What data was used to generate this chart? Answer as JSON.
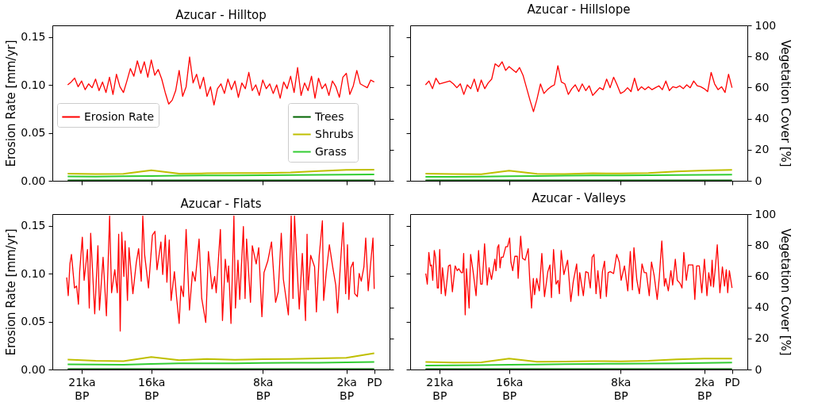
{
  "chart_data": [
    {
      "type": "line",
      "title": "Azucar - Hilltop",
      "ylabel": "Erosion Rate [mm/yr]",
      "xlim": [
        -23.1,
        1.1
      ],
      "ylim": [
        0,
        0.162
      ],
      "yticks": [
        {
          "value": 0,
          "label": "0.00"
        },
        {
          "value": 0.05,
          "label": "0.05"
        },
        {
          "value": 0.1,
          "label": "0.10"
        },
        {
          "value": 0.15,
          "label": "0.15"
        }
      ],
      "y2lim": [
        0,
        100
      ],
      "tick_labels": "y",
      "legend": [
        "center left",
        "center right"
      ],
      "series": [
        {
          "name": "Erosion Rate",
          "color": "#ff0000",
          "x": [
            -22,
            -21.75,
            -21.5,
            -21.25,
            -21,
            -20.75,
            -20.5,
            -20.25,
            -20,
            -19.75,
            -19.5,
            -19.25,
            -19,
            -18.75,
            -18.5,
            -18.25,
            -18,
            -17.75,
            -17.5,
            -17.25,
            -17,
            -16.75,
            -16.5,
            -16.25,
            -16,
            -15.75,
            -15.5,
            -15.25,
            -15,
            -14.75,
            -14.5,
            -14.25,
            -14,
            -13.75,
            -13.5,
            -13.25,
            -13,
            -12.75,
            -12.5,
            -12.25,
            -12,
            -11.75,
            -11.5,
            -11.25,
            -11,
            -10.75,
            -10.5,
            -10.25,
            -10,
            -9.75,
            -9.5,
            -9.25,
            -9,
            -8.75,
            -8.5,
            -8.25,
            -8,
            -7.75,
            -7.5,
            -7.25,
            -7,
            -6.75,
            -6.5,
            -6.25,
            -6,
            -5.75,
            -5.5,
            -5.25,
            -5,
            -4.75,
            -4.5,
            -4.25,
            -4,
            -3.75,
            -3.5,
            -3.25,
            -3,
            -2.75,
            -2.5,
            -2.25,
            -2,
            -1.75,
            -1.5,
            -1.25,
            -1,
            -0.75,
            -0.5,
            -0.25,
            0
          ],
          "values": [
            0.1,
            0.103,
            0.107,
            0.098,
            0.104,
            0.095,
            0.101,
            0.097,
            0.106,
            0.094,
            0.103,
            0.092,
            0.108,
            0.09,
            0.111,
            0.098,
            0.092,
            0.104,
            0.117,
            0.109,
            0.125,
            0.112,
            0.124,
            0.108,
            0.126,
            0.11,
            0.116,
            0.106,
            0.092,
            0.08,
            0.084,
            0.094,
            0.115,
            0.088,
            0.098,
            0.129,
            0.102,
            0.111,
            0.096,
            0.108,
            0.088,
            0.098,
            0.079,
            0.096,
            0.101,
            0.091,
            0.106,
            0.095,
            0.104,
            0.087,
            0.102,
            0.096,
            0.113,
            0.094,
            0.1,
            0.089,
            0.105,
            0.096,
            0.101,
            0.091,
            0.1,
            0.086,
            0.103,
            0.096,
            0.109,
            0.092,
            0.118,
            0.089,
            0.102,
            0.094,
            0.109,
            0.086,
            0.107,
            0.096,
            0.101,
            0.089,
            0.104,
            0.098,
            0.087,
            0.108,
            0.112,
            0.09,
            0.099,
            0.115,
            0.101,
            0.099,
            0.097,
            0.105,
            0.103
          ]
        },
        {
          "name": "Trees",
          "color": "#006400",
          "axis": "y2",
          "x": [
            -22,
            -20,
            -18,
            -16,
            -14,
            -12,
            -10,
            -8,
            -6,
            -4,
            -2,
            0
          ],
          "values": [
            0.3,
            0.3,
            0.3,
            0.3,
            0.3,
            0.3,
            0.3,
            0.3,
            0.3,
            0.3,
            0.3,
            0.3
          ]
        },
        {
          "name": "Shrubs",
          "color": "#bfbf00",
          "axis": "y2",
          "x": [
            -22,
            -20,
            -18,
            -16,
            -14,
            -12,
            -10,
            -8,
            -6,
            -4,
            -2,
            0
          ],
          "values": [
            4.6,
            4.4,
            4.5,
            6.8,
            4.6,
            4.8,
            5.0,
            5.0,
            5.3,
            6.2,
            7.0,
            7.2
          ]
        },
        {
          "name": "Grass",
          "color": "#32cd32",
          "axis": "y2",
          "x": [
            -22,
            -20,
            -18,
            -16,
            -14,
            -12,
            -10,
            -8,
            -6,
            -4,
            -2,
            0
          ],
          "values": [
            2.8,
            2.7,
            2.9,
            3.0,
            3.3,
            3.4,
            3.5,
            3.6,
            3.7,
            3.8,
            3.9,
            4.1
          ]
        }
      ]
    },
    {
      "type": "line",
      "title": "Azucar - Hillslope",
      "y2label": "Vegetation Cover [%]",
      "xlim": [
        -23.1,
        1.1
      ],
      "ylim": [
        0,
        0.162
      ],
      "y2lim": [
        0,
        100
      ],
      "y2ticks": [
        0,
        20,
        40,
        60,
        80,
        100
      ],
      "tick_labels": "y2",
      "series": [
        {
          "color": "#ff0000",
          "x": [
            -22,
            -21.75,
            -21.5,
            -21.25,
            -21,
            -20.75,
            -20.5,
            -20.25,
            -20,
            -19.75,
            -19.5,
            -19.25,
            -19,
            -18.75,
            -18.5,
            -18.25,
            -18,
            -17.75,
            -17.5,
            -17.25,
            -17,
            -16.75,
            -16.5,
            -16.25,
            -16,
            -15.75,
            -15.5,
            -15.25,
            -15,
            -14.75,
            -14.5,
            -14.25,
            -14,
            -13.75,
            -13.5,
            -13.25,
            -13,
            -12.75,
            -12.5,
            -12.25,
            -12,
            -11.75,
            -11.5,
            -11.25,
            -11,
            -10.75,
            -10.5,
            -10.25,
            -10,
            -9.75,
            -9.5,
            -9.25,
            -9,
            -8.75,
            -8.5,
            -8.25,
            -8,
            -7.75,
            -7.5,
            -7.25,
            -7,
            -6.75,
            -6.5,
            -6.25,
            -6,
            -5.75,
            -5.5,
            -5.25,
            -5,
            -4.75,
            -4.5,
            -4.25,
            -4,
            -3.75,
            -3.5,
            -3.25,
            -3,
            -2.75,
            -2.5,
            -2.25,
            -2,
            -1.75,
            -1.5,
            -1.25,
            -1,
            -0.75,
            -0.5,
            -0.25,
            0
          ],
          "values": [
            0.1,
            0.104,
            0.096,
            0.107,
            0.101,
            0.102,
            0.103,
            0.104,
            0.101,
            0.097,
            0.101,
            0.09,
            0.1,
            0.096,
            0.106,
            0.093,
            0.105,
            0.096,
            0.102,
            0.106,
            0.122,
            0.119,
            0.124,
            0.115,
            0.119,
            0.116,
            0.113,
            0.118,
            0.11,
            0.097,
            0.084,
            0.072,
            0.085,
            0.101,
            0.091,
            0.095,
            0.098,
            0.1,
            0.12,
            0.103,
            0.101,
            0.09,
            0.096,
            0.1,
            0.093,
            0.101,
            0.094,
            0.099,
            0.089,
            0.093,
            0.097,
            0.095,
            0.106,
            0.097,
            0.108,
            0.1,
            0.091,
            0.093,
            0.097,
            0.093,
            0.107,
            0.094,
            0.098,
            0.095,
            0.098,
            0.095,
            0.097,
            0.099,
            0.095,
            0.104,
            0.094,
            0.098,
            0.097,
            0.099,
            0.096,
            0.1,
            0.097,
            0.104,
            0.099,
            0.098,
            0.096,
            0.093,
            0.113,
            0.101,
            0.095,
            0.098,
            0.092,
            0.111,
            0.097
          ]
        },
        {
          "color": "#006400",
          "axis": "y2",
          "x": [
            -22,
            -20,
            -18,
            -16,
            -14,
            -12,
            -10,
            -8,
            -6,
            -4,
            -2,
            0
          ],
          "values": [
            0.3,
            0.3,
            0.3,
            0.3,
            0.3,
            0.3,
            0.3,
            0.3,
            0.3,
            0.3,
            0.3,
            0.3
          ]
        },
        {
          "color": "#bfbf00",
          "axis": "y2",
          "x": [
            -22,
            -20,
            -18,
            -16,
            -14,
            -12,
            -10,
            -8,
            -6,
            -4,
            -2,
            0
          ],
          "values": [
            4.6,
            4.3,
            4.2,
            6.5,
            4.5,
            4.4,
            4.8,
            4.7,
            5.0,
            6.0,
            6.6,
            7.0
          ]
        },
        {
          "color": "#32cd32",
          "axis": "y2",
          "x": [
            -22,
            -20,
            -18,
            -16,
            -14,
            -12,
            -10,
            -8,
            -6,
            -4,
            -2,
            0
          ],
          "values": [
            2.5,
            2.6,
            2.7,
            2.9,
            3.1,
            3.3,
            3.4,
            3.5,
            3.6,
            3.7,
            3.8,
            3.9
          ]
        }
      ]
    },
    {
      "type": "line",
      "title": "Azucar - Flats",
      "ylabel": "Erosion Rate [mm/yr]",
      "xlim": [
        -23.1,
        1.1
      ],
      "xticks": [
        {
          "value": -21,
          "label": "21ka BP"
        },
        {
          "value": -16,
          "label": "16ka BP"
        },
        {
          "value": -8,
          "label": "8ka BP"
        },
        {
          "value": -2,
          "label": "2ka BP"
        },
        {
          "value": 0,
          "label": "PD"
        }
      ],
      "ylim": [
        0,
        0.162
      ],
      "yticks": [
        {
          "value": 0,
          "label": "0.00"
        },
        {
          "value": 0.05,
          "label": "0.05"
        },
        {
          "value": 0.1,
          "label": "0.10"
        },
        {
          "value": 0.15,
          "label": "0.15"
        }
      ],
      "y2lim": [
        0,
        100
      ],
      "tick_labels": "xy",
      "series": [
        {
          "color": "#ff0000",
          "x": [
            -22.07,
            -21.96,
            -21.84,
            -21.73,
            -21.51,
            -21.36,
            -21.23,
            -21.14,
            -20.95,
            -20.82,
            -20.58,
            -20.45,
            -20.35,
            -20.06,
            -19.83,
            -19.72,
            -19.46,
            -19.22,
            -18.99,
            -18.85,
            -18.62,
            -18.44,
            -18.34,
            -18.23,
            -18.12,
            -17.97,
            -17.88,
            -17.71,
            -17.6,
            -17.32,
            -17.08,
            -16.91,
            -16.72,
            -16.61,
            -16.48,
            -16.2,
            -15.92,
            -15.74,
            -15.59,
            -15.31,
            -15.18,
            -14.99,
            -14.88,
            -14.71,
            -14.58,
            -14.34,
            -14.19,
            -14,
            -13.87,
            -13.69,
            -13.5,
            -13.26,
            -13.04,
            -12.85,
            -12.57,
            -12.38,
            -12.09,
            -11.9,
            -11.64,
            -11.45,
            -11.34,
            -11.04,
            -10.89,
            -10.69,
            -10.52,
            -10.45,
            -10.28,
            -10.07,
            -9.96,
            -9.78,
            -9.65,
            -9.39,
            -9.27,
            -9.16,
            -8.88,
            -8.75,
            -8.47,
            -8.29,
            -8.06,
            -7.91,
            -7.64,
            -7.37,
            -7.08,
            -6.89,
            -6.67,
            -6.52,
            -6.16,
            -5.96,
            -5.83,
            -5.72,
            -5.38,
            -5.16,
            -4.93,
            -4.82,
            -4.75,
            -4.56,
            -4.28,
            -4.15,
            -3.95,
            -3.72,
            -3.63,
            -3.45,
            -3.22,
            -2.98,
            -2.76,
            -2.63,
            -2.42,
            -2.23,
            -2.05,
            -1.92,
            -1.82,
            -1.68,
            -1.51,
            -1.4,
            -1.21,
            -1.08,
            -0.93,
            -0.74,
            -0.61,
            -0.43,
            -0.24,
            -0.09,
            0
          ],
          "values": [
            0.096,
            0.077,
            0.11,
            0.12,
            0.085,
            0.087,
            0.068,
            0.102,
            0.138,
            0.093,
            0.125,
            0.064,
            0.142,
            0.058,
            0.129,
            0.062,
            0.117,
            0.056,
            0.16,
            0.08,
            0.104,
            0.08,
            0.141,
            0.04,
            0.143,
            0.097,
            0.134,
            0.072,
            0.127,
            0.079,
            0.111,
            0.126,
            0.092,
            0.16,
            0.12,
            0.085,
            0.14,
            0.144,
            0.104,
            0.133,
            0.099,
            0.14,
            0.091,
            0.135,
            0.072,
            0.102,
            0.076,
            0.048,
            0.087,
            0.076,
            0.146,
            0.062,
            0.102,
            0.092,
            0.136,
            0.074,
            0.049,
            0.123,
            0.084,
            0.097,
            0.08,
            0.146,
            0.051,
            0.115,
            0.091,
            0.108,
            0.048,
            0.16,
            0.064,
            0.114,
            0.073,
            0.149,
            0.074,
            0.136,
            0.07,
            0.129,
            0.11,
            0.127,
            0.055,
            0.101,
            0.113,
            0.133,
            0.07,
            0.081,
            0.142,
            0.094,
            0.057,
            0.16,
            0.074,
            0.16,
            0.063,
            0.121,
            0.051,
            0.141,
            0.083,
            0.119,
            0.107,
            0.06,
            0.118,
            0.155,
            0.072,
            0.1,
            0.13,
            0.107,
            0.088,
            0.059,
            0.111,
            0.153,
            0.079,
            0.13,
            0.073,
            0.106,
            0.112,
            0.079,
            0.076,
            0.1,
            0.092,
            0.107,
            0.137,
            0.082,
            0.113,
            0.137,
            0.084
          ]
        },
        {
          "color": "#006400",
          "axis": "y2",
          "x": [
            -22,
            -20,
            -18,
            -16,
            -14,
            -12,
            -10,
            -8,
            -6,
            -4,
            -2,
            0
          ],
          "values": [
            0.3,
            0.3,
            0.3,
            0.3,
            0.3,
            0.3,
            0.3,
            0.3,
            0.3,
            0.3,
            0.3,
            0.3
          ]
        },
        {
          "color": "#bfbf00",
          "axis": "y2",
          "x": [
            -22,
            -20,
            -18,
            -16,
            -14,
            -12,
            -10,
            -8,
            -6,
            -4,
            -2,
            0
          ],
          "values": [
            6.4,
            5.6,
            5.3,
            8.0,
            6.0,
            6.8,
            6.2,
            6.6,
            6.8,
            7.2,
            7.5,
            10.5
          ]
        },
        {
          "color": "#32cd32",
          "axis": "y2",
          "x": [
            -22,
            -20,
            -18,
            -16,
            -14,
            -12,
            -10,
            -8,
            -6,
            -4,
            -2,
            0
          ],
          "values": [
            3.3,
            3.2,
            3.1,
            3.6,
            3.9,
            4.0,
            3.9,
            4.2,
            4.3,
            4.4,
            4.6,
            4.9
          ]
        }
      ]
    },
    {
      "type": "line",
      "title": "Azucar - Valleys",
      "y2label": "Vegetation Cover [%]",
      "xlim": [
        -23.1,
        1.1
      ],
      "xticks": [
        {
          "value": -21,
          "label": "21ka BP"
        },
        {
          "value": -16,
          "label": "16ka BP"
        },
        {
          "value": -8,
          "label": "8ka BP"
        },
        {
          "value": -2,
          "label": "2ka BP"
        },
        {
          "value": 0,
          "label": "PD"
        }
      ],
      "ylim": [
        0,
        0.162
      ],
      "y2lim": [
        0,
        100
      ],
      "y2ticks": [
        0,
        20,
        40,
        60,
        80,
        100
      ],
      "tick_labels": "xy2",
      "series": [
        {
          "color": "#ff0000",
          "x": [
            -21.98,
            -21.87,
            -21.76,
            -21.65,
            -21.57,
            -21.48,
            -21.37,
            -21.28,
            -21.15,
            -21.07,
            -20.98,
            -20.87,
            -20.78,
            -20.57,
            -20.35,
            -20.22,
            -20.07,
            -19.87,
            -19.72,
            -19.61,
            -19.43,
            -19.33,
            -19.26,
            -19.15,
            -19.06,
            -18.87,
            -18.76,
            -18.59,
            -18.37,
            -18.19,
            -18.04,
            -17.93,
            -17.76,
            -17.57,
            -17.44,
            -17.26,
            -17.02,
            -16.94,
            -16.83,
            -16.74,
            -16.65,
            -16.56,
            -16.43,
            -16.24,
            -16.11,
            -15.96,
            -15.87,
            -15.74,
            -15.59,
            -15.41,
            -15.35,
            -15.17,
            -15.04,
            -14.85,
            -14.63,
            -14.52,
            -14.39,
            -14.26,
            -14.17,
            -14.02,
            -13.83,
            -13.65,
            -13.46,
            -13.22,
            -13.07,
            -12.96,
            -12.81,
            -12.63,
            -12.48,
            -12.39,
            -12.26,
            -12.07,
            -11.8,
            -11.57,
            -11.39,
            -11.15,
            -11.02,
            -10.93,
            -10.67,
            -10.5,
            -10.33,
            -10.17,
            -10.04,
            -9.91,
            -9.76,
            -9.63,
            -9.44,
            -9.3,
            -9.15,
            -9.02,
            -8.89,
            -8.74,
            -8.5,
            -8.28,
            -8.09,
            -7.96,
            -7.72,
            -7.48,
            -7.3,
            -7.15,
            -7.04,
            -6.83,
            -6.65,
            -6.46,
            -6.3,
            -6.15,
            -5.94,
            -5.78,
            -5.59,
            -5.37,
            -5.22,
            -5.04,
            -4.85,
            -4.76,
            -4.57,
            -4.39,
            -4.26,
            -4.07,
            -3.93,
            -3.74,
            -3.59,
            -3.46,
            -3.28,
            -3.13,
            -3,
            -2.81,
            -2.67,
            -2.54,
            -2.35,
            -2.17,
            -1.98,
            -1.8,
            -1.67,
            -1.52,
            -1.43,
            -1.33,
            -1.2,
            -1.06,
            -0.87,
            -0.69,
            -0.54,
            -0.41,
            -0.31,
            -0.19,
            0
          ],
          "values": [
            0.1,
            0.089,
            0.122,
            0.108,
            0.109,
            0.093,
            0.124,
            0.117,
            0.085,
            0.085,
            0.125,
            0.079,
            0.106,
            0.077,
            0.108,
            0.109,
            0.081,
            0.108,
            0.103,
            0.105,
            0.101,
            0.101,
            0.121,
            0.057,
            0.105,
            0.064,
            0.12,
            0.103,
            0.077,
            0.124,
            0.089,
            0.089,
            0.131,
            0.088,
            0.106,
            0.094,
            0.115,
            0.103,
            0.127,
            0.13,
            0.106,
            0.117,
            0.117,
            0.128,
            0.128,
            0.137,
            0.112,
            0.103,
            0.118,
            0.118,
            0.095,
            0.139,
            0.116,
            0.114,
            0.126,
            0.094,
            0.064,
            0.095,
            0.078,
            0.095,
            0.082,
            0.121,
            0.076,
            0.102,
            0.109,
            0.075,
            0.125,
            0.089,
            0.093,
            0.079,
            0.124,
            0.099,
            0.114,
            0.071,
            0.092,
            0.11,
            0.077,
            0.101,
            0.077,
            0.102,
            0.101,
            0.085,
            0.117,
            0.12,
            0.079,
            0.103,
            0.074,
            0.102,
            0.113,
            0.076,
            0.101,
            0.102,
            0.1,
            0.12,
            0.112,
            0.093,
            0.108,
            0.082,
            0.123,
            0.083,
            0.127,
            0.093,
            0.079,
            0.11,
            0.101,
            0.101,
            0.077,
            0.112,
            0.098,
            0.073,
            0.096,
            0.134,
            0.087,
            0.095,
            0.082,
            0.103,
            0.088,
            0.115,
            0.093,
            0.09,
            0.085,
            0.122,
            0.093,
            0.109,
            0.109,
            0.109,
            0.073,
            0.108,
            0.108,
            0.08,
            0.115,
            0.077,
            0.101,
            0.087,
            0.114,
            0.086,
            0.106,
            0.13,
            0.08,
            0.107,
            0.087,
            0.104,
            0.08,
            0.103,
            0.085
          ]
        },
        {
          "color": "#006400",
          "axis": "y2",
          "x": [
            -22,
            -20,
            -18,
            -16,
            -14,
            -12,
            -10,
            -8,
            -6,
            -4,
            -2,
            0
          ],
          "values": [
            0.3,
            0.3,
            0.3,
            0.3,
            0.3,
            0.3,
            0.3,
            0.3,
            0.3,
            0.3,
            0.3,
            0.3
          ]
        },
        {
          "color": "#bfbf00",
          "axis": "y2",
          "x": [
            -22,
            -20,
            -18,
            -16,
            -14,
            -12,
            -10,
            -8,
            -6,
            -4,
            -2,
            0
          ],
          "values": [
            4.8,
            4.5,
            4.6,
            7.0,
            5.0,
            5.1,
            5.4,
            5.2,
            5.6,
            6.5,
            7.0,
            7.0
          ]
        },
        {
          "color": "#32cd32",
          "axis": "y2",
          "x": [
            -22,
            -20,
            -18,
            -16,
            -14,
            -12,
            -10,
            -8,
            -6,
            -4,
            -2,
            0
          ],
          "values": [
            2.6,
            2.7,
            2.8,
            3.0,
            3.2,
            3.5,
            3.6,
            3.7,
            3.8,
            4.0,
            4.2,
            4.5
          ]
        }
      ]
    }
  ]
}
